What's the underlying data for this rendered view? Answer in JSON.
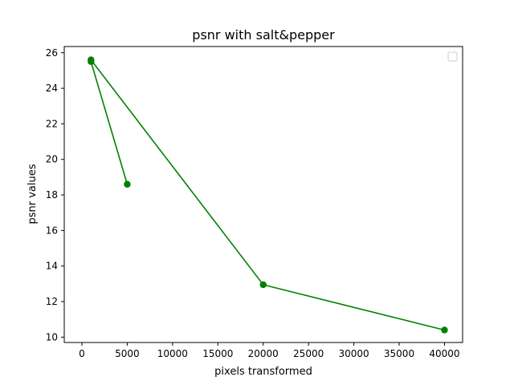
{
  "chart_data": {
    "type": "line",
    "title": "psnr with salt&pepper",
    "xlabel": "pixels transformed",
    "ylabel": "psnr values",
    "xlim": [
      -1950,
      42000
    ],
    "ylim": [
      9.7,
      26.35
    ],
    "xticks": [
      0,
      5000,
      10000,
      15000,
      20000,
      25000,
      30000,
      35000,
      40000
    ],
    "xtick_labels": [
      "0",
      "5000",
      "10000",
      "15000",
      "20000",
      "25000",
      "30000",
      "35000",
      "40000"
    ],
    "yticks": [
      10,
      12,
      14,
      16,
      18,
      20,
      22,
      24,
      26
    ],
    "ytick_labels": [
      "10",
      "12",
      "14",
      "16",
      "18",
      "20",
      "22",
      "24",
      "26"
    ],
    "grid": false,
    "legend": "upper-right (empty)",
    "colors": {
      "series": "#008000"
    },
    "series": [
      {
        "marker": "circle",
        "x": [
          5000,
          1000,
          1000,
          20000,
          40000
        ],
        "y": [
          18.6,
          25.5,
          25.6,
          12.95,
          10.4
        ]
      }
    ]
  }
}
